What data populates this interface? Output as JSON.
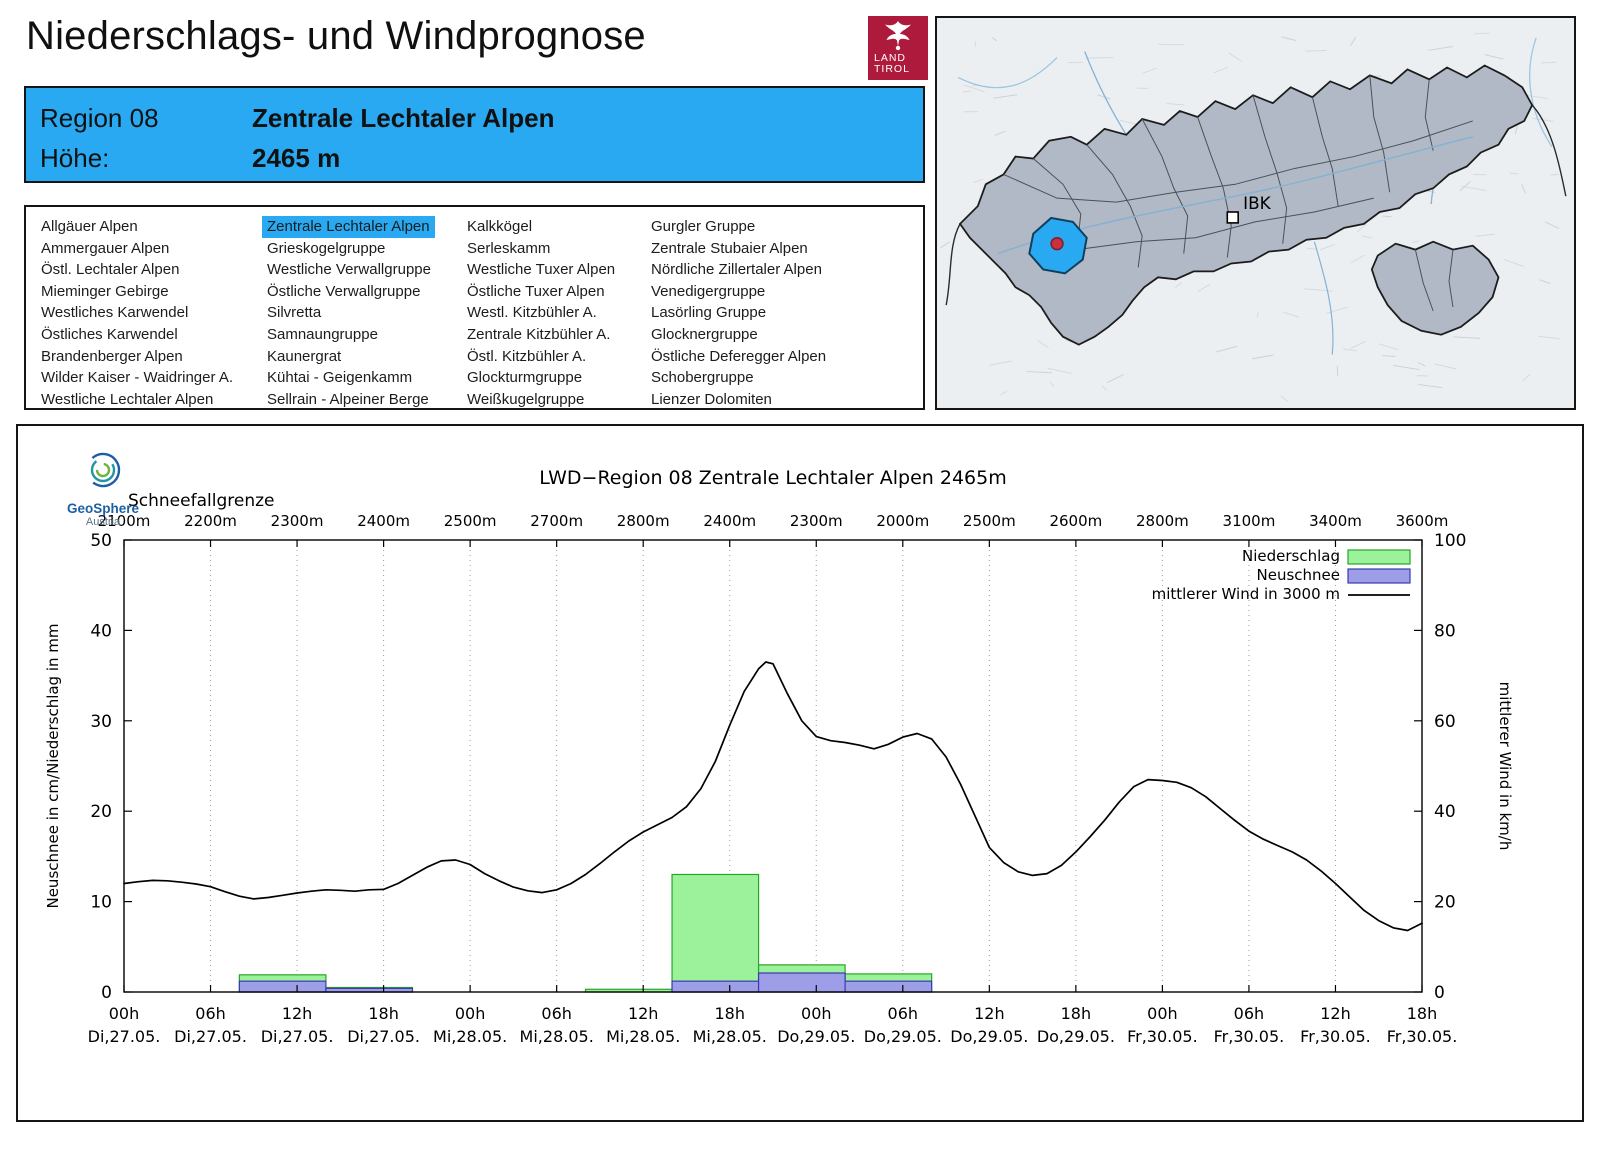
{
  "page": {
    "title": "Niederschlags- und Windprognose"
  },
  "logo": {
    "line1": "LAND",
    "line2": "TIROL"
  },
  "header": {
    "region_label": "Region 08",
    "region_name": "Zentrale Lechtaler Alpen",
    "hoehe_label": "Höhe:",
    "hoehe_value": "2465 m",
    "accent_color": "#29a9f1"
  },
  "region_list": {
    "selected": "Zentrale Lechtaler Alpen",
    "columns": [
      [
        "Allgäuer Alpen",
        "Ammergauer Alpen",
        "Östl. Lechtaler Alpen",
        "Mieminger Gebirge",
        "Westliches Karwendel",
        "Östliches Karwendel",
        "Brandenberger Alpen",
        "Wilder Kaiser - Waidringer A.",
        "Westliche Lechtaler Alpen"
      ],
      [
        "Zentrale Lechtaler Alpen",
        "Grieskogelgruppe",
        "Westliche Verwallgruppe",
        "Östliche Verwallgruppe",
        "Silvretta",
        "Samnaungruppe",
        "Kaunergrat",
        "Kühtai - Geigenkamm",
        "Sellrain - Alpeiner Berge"
      ],
      [
        "Kalkkögel",
        "Serleskamm",
        "Westliche Tuxer Alpen",
        "Östliche Tuxer Alpen",
        "Westl. Kitzbühler A.",
        "Zentrale Kitzbühler A.",
        "Östl. Kitzbühler A.",
        "Glockturmgruppe",
        "Weißkugelgruppe"
      ],
      [
        "Gurgler Gruppe",
        "Zentrale Stubaier Alpen",
        "Nördliche Zillertaler Alpen",
        "Venedigergruppe",
        "Lasörling Gruppe",
        "Glocknergruppe",
        "Östliche Deferegger Alpen",
        "Schobergruppe",
        "Lienzer Dolomiten"
      ]
    ]
  },
  "map": {
    "marker_label": "IBK",
    "highlight_color": "#29a9f1",
    "marker_dot_color": "#c93040"
  },
  "geosphere": {
    "name": "GeoSphere",
    "sub": "Austria"
  },
  "chart_data": {
    "type": "bar+line",
    "title": "LWD−Region 08 Zentrale Lechtaler Alpen 2465m",
    "top_axis": {
      "label": "Schneefallgrenze",
      "tick_values": [
        "2100m",
        "2200m",
        "2300m",
        "2400m",
        "2500m",
        "2700m",
        "2800m",
        "2400m",
        "2300m",
        "2000m",
        "2500m",
        "2600m",
        "2800m",
        "3100m",
        "3400m",
        "3600m"
      ]
    },
    "x_axis": {
      "hours_total": 90,
      "tick_step_h": 6,
      "ticks": [
        {
          "time": "00h",
          "date": "Di,27.05."
        },
        {
          "time": "06h",
          "date": "Di,27.05."
        },
        {
          "time": "12h",
          "date": "Di,27.05."
        },
        {
          "time": "18h",
          "date": "Di,27.05."
        },
        {
          "time": "00h",
          "date": "Mi,28.05."
        },
        {
          "time": "06h",
          "date": "Mi,28.05."
        },
        {
          "time": "12h",
          "date": "Mi,28.05."
        },
        {
          "time": "18h",
          "date": "Mi,28.05."
        },
        {
          "time": "00h",
          "date": "Do,29.05."
        },
        {
          "time": "06h",
          "date": "Do,29.05."
        },
        {
          "time": "12h",
          "date": "Do,29.05."
        },
        {
          "time": "18h",
          "date": "Do,29.05."
        },
        {
          "time": "00h",
          "date": "Fr,30.05."
        },
        {
          "time": "06h",
          "date": "Fr,30.05."
        },
        {
          "time": "12h",
          "date": "Fr,30.05."
        },
        {
          "time": "18h",
          "date": "Fr,30.05."
        }
      ]
    },
    "y_left": {
      "label": "Neuschnee in cm/Niederschlag in mm",
      "min": 0,
      "max": 50,
      "ticks": [
        0,
        10,
        20,
        30,
        40,
        50
      ]
    },
    "y_right": {
      "label": "mittlerer Wind in km/h",
      "min": 0,
      "max": 100,
      "ticks": [
        0,
        20,
        40,
        60,
        80,
        100
      ]
    },
    "legend": [
      {
        "label": "Niederschlag",
        "swatch": "box",
        "fill": "#9bf29b",
        "stroke": "#27a527"
      },
      {
        "label": "Neuschnee",
        "swatch": "box",
        "fill": "#9e9ee8",
        "stroke": "#3b3bb0"
      },
      {
        "label": "mittlerer Wind in 3000 m",
        "swatch": "line",
        "stroke": "#000000"
      }
    ],
    "series": {
      "niederschlag_mm": {
        "axis": "left",
        "fill": "#9bf29b",
        "stroke": "#27a527",
        "bars": [
          {
            "start_h": 8,
            "end_h": 14,
            "value": 1.9
          },
          {
            "start_h": 14,
            "end_h": 20,
            "value": 0.5
          },
          {
            "start_h": 32,
            "end_h": 38,
            "value": 0.3
          },
          {
            "start_h": 38,
            "end_h": 44,
            "value": 13
          },
          {
            "start_h": 44,
            "end_h": 50,
            "value": 3
          },
          {
            "start_h": 50,
            "end_h": 56,
            "value": 2
          }
        ]
      },
      "neuschnee_cm": {
        "axis": "left",
        "fill": "#9e9ee8",
        "stroke": "#3b3bb0",
        "bars": [
          {
            "start_h": 8,
            "end_h": 14,
            "value": 1.2
          },
          {
            "start_h": 14,
            "end_h": 20,
            "value": 0.4
          },
          {
            "start_h": 38,
            "end_h": 44,
            "value": 1.2
          },
          {
            "start_h": 44,
            "end_h": 50,
            "value": 2.1
          },
          {
            "start_h": 50,
            "end_h": 56,
            "value": 1.2
          }
        ]
      },
      "wind_kmh": {
        "axis": "right",
        "stroke": "#000000",
        "points": [
          [
            0,
            24
          ],
          [
            1,
            24.4
          ],
          [
            2,
            24.7
          ],
          [
            3,
            24.6
          ],
          [
            4,
            24.3
          ],
          [
            5,
            23.9
          ],
          [
            6,
            23.3
          ],
          [
            7,
            22.2
          ],
          [
            8,
            21.2
          ],
          [
            9,
            20.6
          ],
          [
            10,
            20.9
          ],
          [
            11,
            21.4
          ],
          [
            12,
            21.9
          ],
          [
            13,
            22.3
          ],
          [
            14,
            22.6
          ],
          [
            15,
            22.5
          ],
          [
            16,
            22.3
          ],
          [
            17,
            22.6
          ],
          [
            18,
            22.7
          ],
          [
            19,
            24
          ],
          [
            20,
            25.8
          ],
          [
            21,
            27.6
          ],
          [
            22,
            29
          ],
          [
            23,
            29.2
          ],
          [
            24,
            28.2
          ],
          [
            25,
            26.2
          ],
          [
            26,
            24.6
          ],
          [
            27,
            23.2
          ],
          [
            28,
            22.4
          ],
          [
            29,
            22
          ],
          [
            30,
            22.6
          ],
          [
            31,
            24
          ],
          [
            32,
            26
          ],
          [
            33,
            28.4
          ],
          [
            34,
            31
          ],
          [
            35,
            33.4
          ],
          [
            36,
            35.4
          ],
          [
            37,
            37
          ],
          [
            38,
            38.6
          ],
          [
            39,
            41
          ],
          [
            40,
            45
          ],
          [
            41,
            51
          ],
          [
            42,
            59
          ],
          [
            43,
            66.5
          ],
          [
            44,
            71.5
          ],
          [
            44.5,
            73
          ],
          [
            45,
            72.6
          ],
          [
            46,
            66
          ],
          [
            47,
            60
          ],
          [
            48,
            56.5
          ],
          [
            49,
            55.6
          ],
          [
            50,
            55.2
          ],
          [
            51,
            54.6
          ],
          [
            52,
            53.8
          ],
          [
            53,
            54.8
          ],
          [
            54,
            56.4
          ],
          [
            55,
            57.2
          ],
          [
            56,
            56
          ],
          [
            57,
            52
          ],
          [
            58,
            46
          ],
          [
            59,
            39
          ],
          [
            60,
            32
          ],
          [
            61,
            28.6
          ],
          [
            62,
            26.6
          ],
          [
            63,
            25.8
          ],
          [
            64,
            26.2
          ],
          [
            65,
            28
          ],
          [
            66,
            31
          ],
          [
            67,
            34.4
          ],
          [
            68,
            38
          ],
          [
            69,
            42
          ],
          [
            70,
            45.4
          ],
          [
            71,
            47
          ],
          [
            72,
            46.8
          ],
          [
            73,
            46.4
          ],
          [
            74,
            45.2
          ],
          [
            75,
            43.2
          ],
          [
            76,
            40.6
          ],
          [
            77,
            38
          ],
          [
            78,
            35.6
          ],
          [
            79,
            33.8
          ],
          [
            80,
            32.4
          ],
          [
            81,
            31
          ],
          [
            82,
            29.2
          ],
          [
            83,
            26.8
          ],
          [
            84,
            24
          ],
          [
            85,
            21
          ],
          [
            86,
            18
          ],
          [
            87,
            15.8
          ],
          [
            88,
            14.2
          ],
          [
            89,
            13.6
          ],
          [
            90,
            15.2
          ]
        ]
      }
    }
  }
}
